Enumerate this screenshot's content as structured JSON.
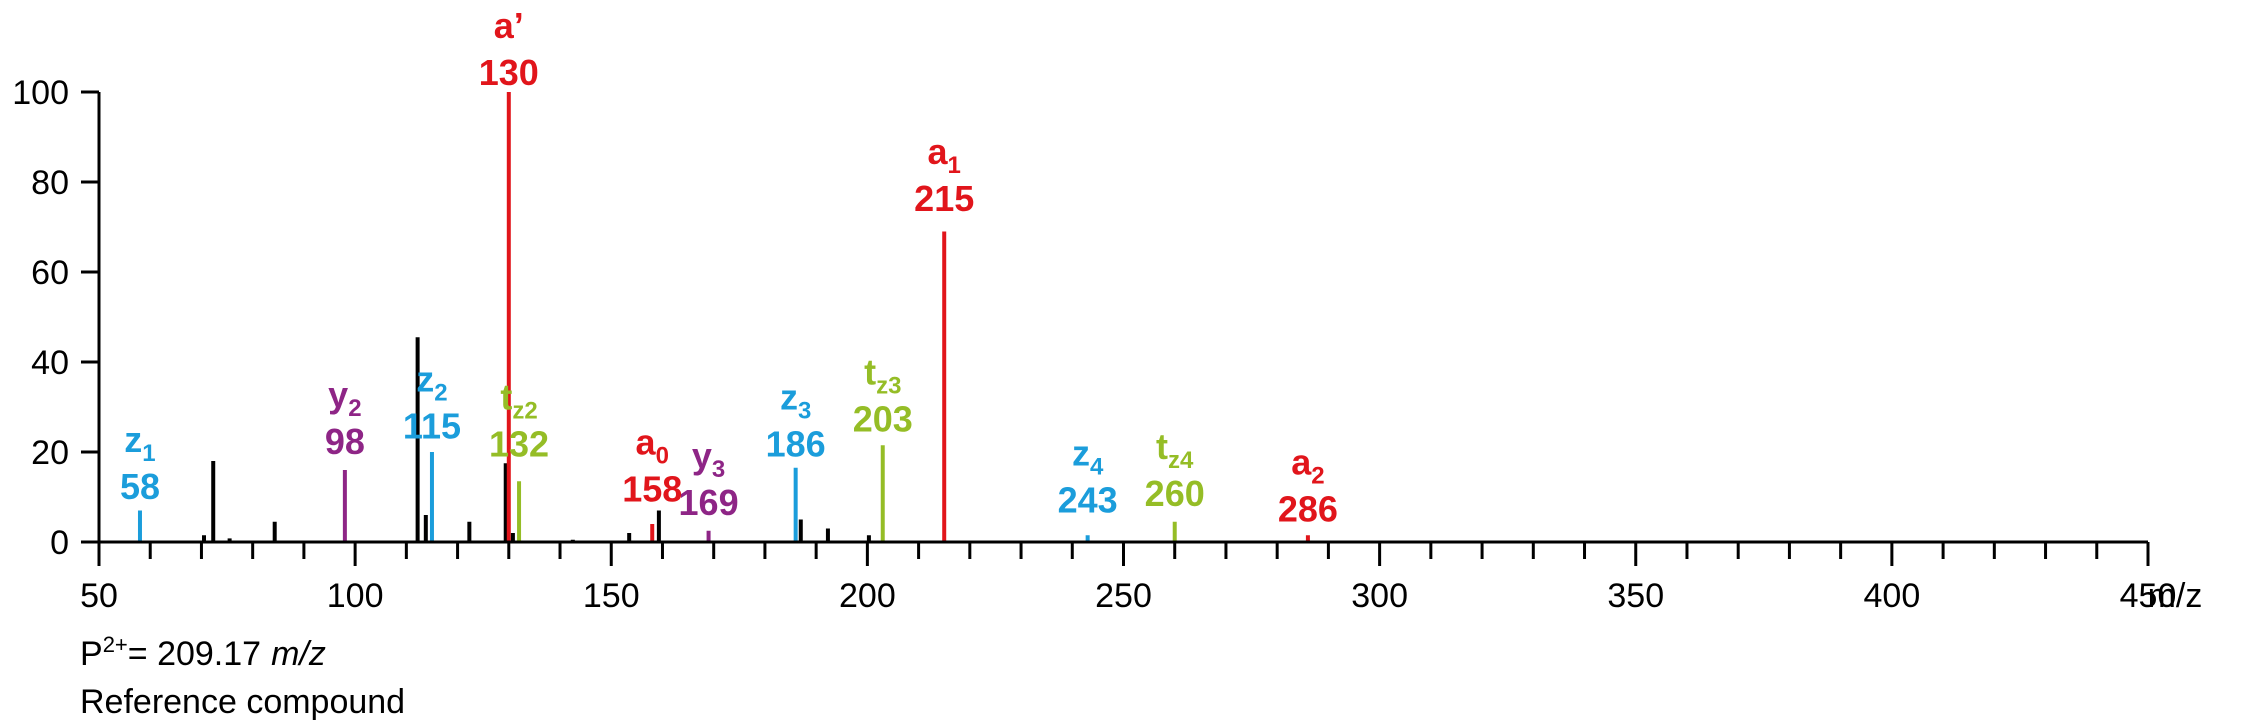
{
  "chart_data": {
    "type": "bar",
    "subtype": "mass-spectrum",
    "x_unit": "m/z",
    "xlim": [
      50,
      450
    ],
    "ylim": [
      0,
      100
    ],
    "x_ticks": [
      50,
      100,
      150,
      200,
      250,
      300,
      350,
      400,
      450
    ],
    "y_ticks": [
      0,
      20,
      40,
      60,
      80,
      100
    ],
    "grid": false,
    "colors": {
      "unassigned": "#000000",
      "a": "#e1151b",
      "z": "#1b9ddb",
      "y": "#8e2586",
      "t": "#95bd26"
    },
    "peaks": [
      {
        "mz": 58,
        "intensity": 7,
        "series": "z"
      },
      {
        "mz": 70.5,
        "intensity": 1.5,
        "series": "unassigned"
      },
      {
        "mz": 72.3,
        "intensity": 18,
        "series": "unassigned"
      },
      {
        "mz": 75.5,
        "intensity": 0.8,
        "series": "unassigned"
      },
      {
        "mz": 84.3,
        "intensity": 4.5,
        "series": "unassigned"
      },
      {
        "mz": 98,
        "intensity": 16,
        "series": "y"
      },
      {
        "mz": 112.2,
        "intensity": 45.5,
        "series": "unassigned"
      },
      {
        "mz": 113.8,
        "intensity": 6,
        "series": "unassigned"
      },
      {
        "mz": 115,
        "intensity": 20,
        "series": "z"
      },
      {
        "mz": 122.3,
        "intensity": 4.5,
        "series": "unassigned"
      },
      {
        "mz": 129.4,
        "intensity": 17.5,
        "series": "unassigned"
      },
      {
        "mz": 130,
        "intensity": 100,
        "series": "a"
      },
      {
        "mz": 130.8,
        "intensity": 2,
        "series": "unassigned"
      },
      {
        "mz": 132,
        "intensity": 13.5,
        "series": "t"
      },
      {
        "mz": 142.5,
        "intensity": 0.5,
        "series": "unassigned"
      },
      {
        "mz": 153.5,
        "intensity": 2,
        "series": "unassigned"
      },
      {
        "mz": 158,
        "intensity": 4,
        "series": "a"
      },
      {
        "mz": 159.3,
        "intensity": 7,
        "series": "unassigned"
      },
      {
        "mz": 169,
        "intensity": 2.5,
        "series": "y"
      },
      {
        "mz": 186,
        "intensity": 16.5,
        "series": "z"
      },
      {
        "mz": 187,
        "intensity": 5,
        "series": "unassigned"
      },
      {
        "mz": 192.3,
        "intensity": 3,
        "series": "unassigned"
      },
      {
        "mz": 200.3,
        "intensity": 1.5,
        "series": "unassigned"
      },
      {
        "mz": 203,
        "intensity": 21.5,
        "series": "t"
      },
      {
        "mz": 215,
        "intensity": 69,
        "series": "a"
      },
      {
        "mz": 243,
        "intensity": 1.5,
        "series": "z"
      },
      {
        "mz": 260,
        "intensity": 4.5,
        "series": "t"
      },
      {
        "mz": 286,
        "intensity": 1.5,
        "series": "a"
      }
    ],
    "annotations": [
      {
        "letter": "z",
        "sub": "1",
        "value": "58",
        "mz": 58,
        "series": "z",
        "top_y": 20
      },
      {
        "letter": "y",
        "sub": "2",
        "value": "98",
        "mz": 98,
        "series": "y",
        "top_y": 30
      },
      {
        "letter": "z",
        "sub": "2",
        "value": "115",
        "mz": 115,
        "series": "z",
        "top_y": 33.5
      },
      {
        "letter": "t",
        "sub": "z2",
        "value": "132",
        "mz": 132,
        "series": "t",
        "top_y": 29.5
      },
      {
        "letter": "a’",
        "sub": "",
        "value": "130",
        "mz": 130,
        "series": "a",
        "top_y": 112
      },
      {
        "letter": "a",
        "sub": "0",
        "value": "158",
        "mz": 158,
        "series": "a",
        "top_y": 19.5
      },
      {
        "letter": "y",
        "sub": "3",
        "value": "169",
        "mz": 169,
        "series": "y",
        "top_y": 16.5
      },
      {
        "letter": "z",
        "sub": "3",
        "value": "186",
        "mz": 186,
        "series": "z",
        "top_y": 29.5
      },
      {
        "letter": "t",
        "sub": "z3",
        "value": "203",
        "mz": 203,
        "series": "t",
        "top_y": 35
      },
      {
        "letter": "a",
        "sub": "1",
        "value": "215",
        "mz": 215,
        "series": "a",
        "top_y": 84
      },
      {
        "letter": "z",
        "sub": "4",
        "value": "243",
        "mz": 243,
        "series": "z",
        "top_y": 17
      },
      {
        "letter": "t",
        "sub": "z4",
        "value": "260",
        "mz": 260,
        "series": "t",
        "top_y": 18.5
      },
      {
        "letter": "a",
        "sub": "2",
        "value": "286",
        "mz": 286,
        "series": "a",
        "top_y": 15
      }
    ]
  },
  "footer": {
    "precursor_prefix": "P",
    "precursor_charge": "2+",
    "precursor_value": "= 209.17",
    "precursor_unit": "m/z",
    "caption": "Reference compound"
  }
}
